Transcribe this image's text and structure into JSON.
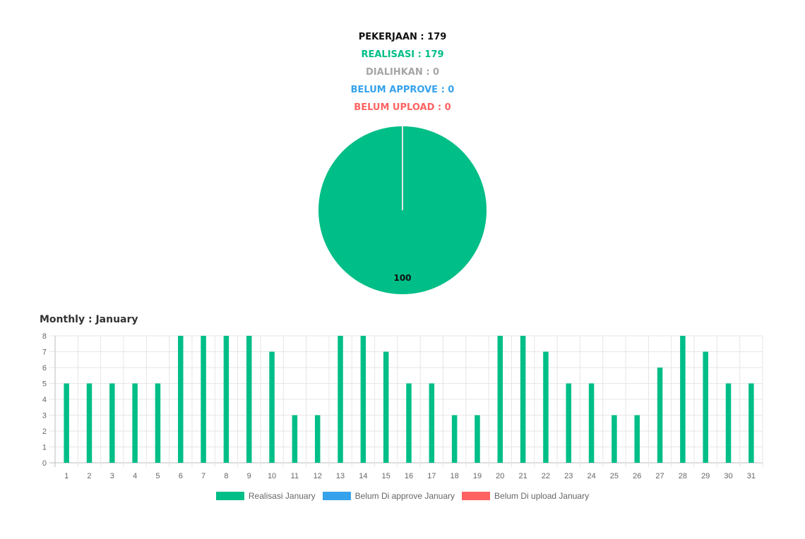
{
  "summary": {
    "pekerjaan": "PEKERJAAN : 179",
    "realisasi": "REALISASI : 179",
    "dialihkan": "DIALIHKAN : 0",
    "belum_approve": "BELUM APPROVE : 0",
    "belum_upload": "BELUM UPLOAD : 0"
  },
  "colors": {
    "realisasi": "#00BE87",
    "dialihkan": "#A6A6A6",
    "belum_approve": "#36A2EB",
    "belum_upload": "#FF6361"
  },
  "monthly_title": "Monthly : January",
  "chart_data": [
    {
      "type": "pie",
      "labels": [
        "Realisasi"
      ],
      "values": [
        100
      ],
      "data_labels": [
        "100"
      ]
    },
    {
      "type": "bar",
      "categories": [
        "1",
        "2",
        "3",
        "4",
        "5",
        "6",
        "7",
        "8",
        "9",
        "10",
        "11",
        "12",
        "13",
        "14",
        "15",
        "16",
        "17",
        "18",
        "19",
        "20",
        "21",
        "22",
        "23",
        "24",
        "25",
        "26",
        "27",
        "28",
        "29",
        "30",
        "31"
      ],
      "series": [
        {
          "name": "Realisasi January",
          "values": [
            5,
            5,
            5,
            5,
            5,
            8,
            8,
            8,
            8,
            7,
            3,
            3,
            8,
            8,
            7,
            5,
            5,
            3,
            3,
            8,
            8,
            7,
            5,
            5,
            3,
            3,
            6,
            8,
            7,
            5,
            5
          ]
        },
        {
          "name": "Belum Di approve January",
          "values": [
            0,
            0,
            0,
            0,
            0,
            0,
            0,
            0,
            0,
            0,
            0,
            0,
            0,
            0,
            0,
            0,
            0,
            0,
            0,
            0,
            0,
            0,
            0,
            0,
            0,
            0,
            0,
            0,
            0,
            0,
            0
          ]
        },
        {
          "name": "Belum Di upload January",
          "values": [
            0,
            0,
            0,
            0,
            0,
            0,
            0,
            0,
            0,
            0,
            0,
            0,
            0,
            0,
            0,
            0,
            0,
            0,
            0,
            0,
            0,
            0,
            0,
            0,
            0,
            0,
            0,
            0,
            0,
            0,
            0
          ]
        }
      ],
      "yticks": [
        "0",
        "1",
        "2",
        "3",
        "4",
        "5",
        "6",
        "7",
        "8"
      ],
      "ylim": [
        0,
        8
      ],
      "grid": true,
      "legend_position": "bottom"
    }
  ],
  "legend": {
    "realisasi": "Realisasi January",
    "belum_approve": "Belum Di approve January",
    "belum_upload": "Belum Di upload January"
  }
}
